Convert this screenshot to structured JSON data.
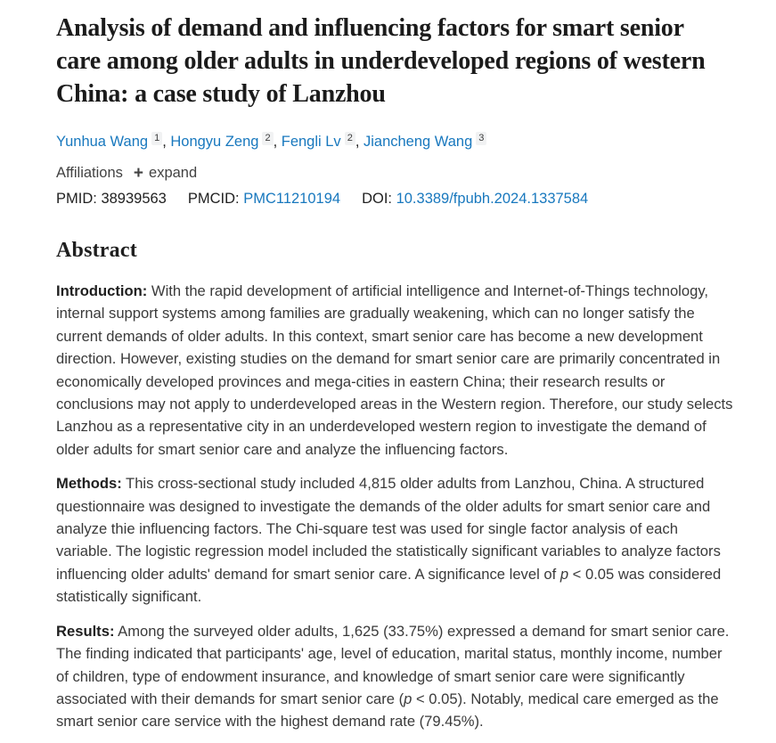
{
  "article": {
    "title": "Analysis of demand and influencing factors for smart senior care among older adults in underdeveloped regions of western China: a case study of Lanzhou"
  },
  "authors": {
    "list": [
      {
        "name": "Yunhua Wang",
        "sup": "1",
        "sep": ", "
      },
      {
        "name": "Hongyu Zeng",
        "sup": "2",
        "sep": ", "
      },
      {
        "name": "Fengli Lv",
        "sup": "2",
        "sep": ", "
      },
      {
        "name": "Jiancheng Wang",
        "sup": "3",
        "sep": ""
      }
    ]
  },
  "affiliations": {
    "label": "Affiliations",
    "plus_icon": "+",
    "expand_label": "expand"
  },
  "identifiers": {
    "pmid_label": "PMID:",
    "pmid_value": "38939563",
    "pmcid_label": "PMCID:",
    "pmcid_value": "PMC11210194",
    "doi_label": "DOI:",
    "doi_value": "10.3389/fpubh.2024.1337584"
  },
  "abstract": {
    "heading": "Abstract",
    "introduction": {
      "lead": "Introduction:",
      "body": " With the rapid development of artificial intelligence and Internet-of-Things technology, internal support systems among families are gradually weakening, which can no longer satisfy the current demands of older adults. In this context, smart senior care has become a new development direction. However, existing studies on the demand for smart senior care are primarily concentrated in economically developed provinces and mega-cities in eastern China; their research results or conclusions may not apply to underdeveloped areas in the Western region. Therefore, our study selects Lanzhou as a representative city in an underdeveloped western region to investigate the demand of older adults for smart senior care and analyze the influencing factors."
    },
    "methods": {
      "lead": "Methods:",
      "body_1": " This cross-sectional study included 4,815 older adults from Lanzhou, China. A structured questionnaire was designed to investigate the demands of the older adults for smart senior care and analyze thie influencing factors. The Chi-square test was used for single factor analysis of each variable. The logistic regression model included the statistically significant variables to analyze factors influencing older adults' demand for smart senior care. A significance level of ",
      "p_italic": "p",
      "body_2": " < 0.05 was considered statistically significant."
    },
    "results": {
      "lead": "Results:",
      "body_1": " Among the surveyed older adults, 1,625 (33.75%) expressed a demand for smart senior care. The finding indicated that participants' age, level of education, marital status, monthly income, number of children, type of endowment insurance, and knowledge of smart senior care were significantly associated with their demands for smart senior care (",
      "p_italic": "p",
      "body_2": " < 0.05). Notably, medical care emerged as the smart senior care service with the highest demand rate (79.45%)."
    }
  },
  "colors": {
    "link_blue": "#1878be",
    "title_text": "#1b1b1b",
    "body_text": "#3a3a3a",
    "sup_chip_bg": "#f1f2f3"
  }
}
